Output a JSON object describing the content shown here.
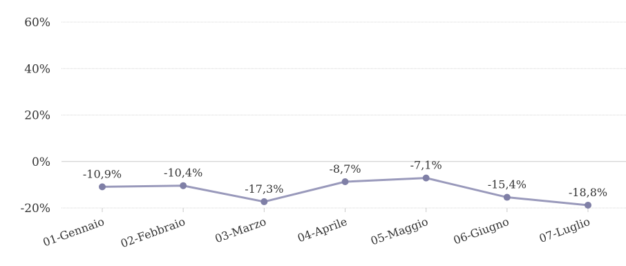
{
  "chart_data": {
    "type": "line",
    "title": "",
    "xlabel": "",
    "ylabel": "",
    "categories": [
      "01-Gennaio",
      "02-Febbraio",
      "03-Marzo",
      "04-Aprile",
      "05-Maggio",
      "06-Giugno",
      "07-Luglio"
    ],
    "series": [
      {
        "values": [
          -10.9,
          -10.4,
          -17.3,
          -8.7,
          -7.1,
          -15.4,
          -18.8
        ],
        "data_labels": [
          "-10,9%",
          "-10,4%",
          "-17,3%",
          "-8,7%",
          "-7,1%",
          "-15,4%",
          "-18,8%"
        ],
        "color": "#9999bb",
        "marker_color": "#7f7fa6"
      }
    ],
    "y_ticks": [
      {
        "value": 60,
        "label": "60%"
      },
      {
        "value": 40,
        "label": "40%"
      },
      {
        "value": 20,
        "label": "20%"
      },
      {
        "value": 0,
        "label": "0%"
      },
      {
        "value": -20,
        "label": "-20%"
      }
    ],
    "ylim": [
      -20,
      60
    ],
    "grid": true,
    "legend": "none"
  }
}
